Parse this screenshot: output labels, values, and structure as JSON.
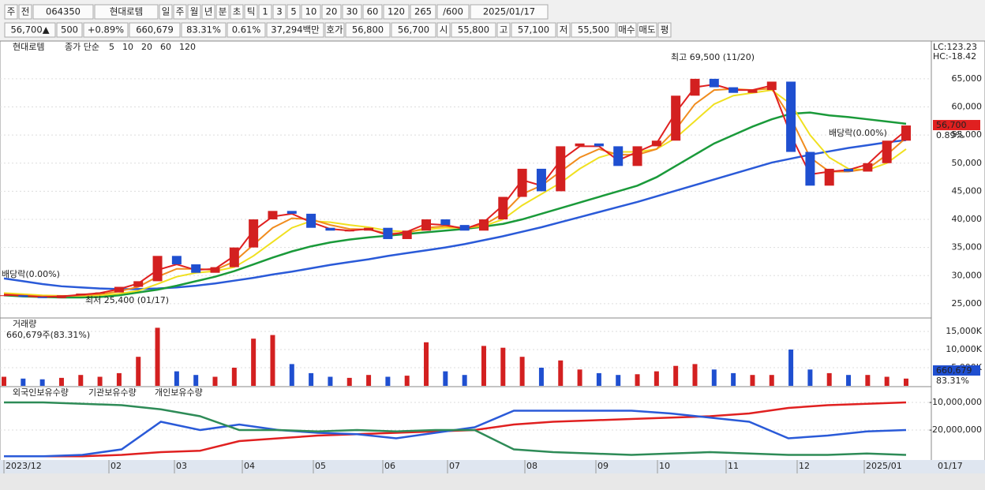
{
  "toolbar": {
    "row1": [
      "주",
      "전",
      "064350",
      "현대로템",
      "일",
      "주",
      "월",
      "년",
      "분",
      "초",
      "틱",
      "1",
      "3",
      "5",
      "10",
      "20",
      "30",
      "60",
      "120",
      "265",
      "/600",
      "2025/01/17"
    ],
    "row2": [
      "56,700▲",
      "500",
      "+0.89%",
      "660,679",
      "83.31%",
      "0.61%",
      "37,294백만",
      "호가",
      "56,800",
      "56,700",
      "시",
      "55,800",
      "고",
      "57,100",
      "저",
      "55,500",
      "매수",
      "매도",
      "평"
    ]
  },
  "chart_data": [
    {
      "type": "candlestick",
      "name": "현대로템",
      "ma_label": "종가 단순",
      "ylim": [
        22600,
        71300
      ],
      "yticks": [
        {
          "value": 25000,
          "label": "25,000"
        },
        {
          "value": 30000,
          "label": "30,000"
        },
        {
          "value": 35000,
          "label": "35,000"
        },
        {
          "value": 40000,
          "label": "40,000"
        },
        {
          "value": 45000,
          "label": "45,000"
        },
        {
          "value": 50000,
          "label": "50,000"
        },
        {
          "value": 55000,
          "label": "55,000"
        },
        {
          "value": 60000,
          "label": "60,000"
        },
        {
          "value": 65000,
          "label": "65,000"
        }
      ],
      "values": [
        26500,
        26200,
        26000,
        26500,
        26800,
        27000,
        28000,
        29000,
        33500,
        32000,
        30500,
        31500,
        35000,
        40000,
        41500,
        41000,
        38500,
        38000,
        38000,
        38500,
        36500,
        38000,
        40000,
        39000,
        38000,
        40000,
        44000,
        49000,
        45000,
        53000,
        53500,
        53000,
        49500,
        53000,
        54000,
        62000,
        65000,
        63500,
        62500,
        63000,
        64500,
        52000,
        46000,
        49000,
        48500,
        50000,
        54000,
        56700
      ],
      "up_color": "#d32020",
      "down_color": "#1f4fd0",
      "series": [
        {
          "name": "5",
          "color": "#e02020",
          "values": [
            26600,
            26400,
            26200,
            26300,
            26600,
            26900,
            27600,
            28600,
            31000,
            32000,
            31000,
            31200,
            33500,
            38000,
            40500,
            41000,
            39500,
            38300,
            38000,
            38300,
            37200,
            37800,
            39200,
            39000,
            38300,
            39500,
            42500,
            47000,
            46000,
            50500,
            53000,
            53000,
            50500,
            52000,
            53500,
            59000,
            63500,
            64000,
            63000,
            63000,
            63800,
            55000,
            48000,
            48500,
            48800,
            49800,
            53000,
            55800
          ]
        },
        {
          "name": "10",
          "color": "#f08c1e",
          "values": [
            26700,
            26500,
            26300,
            26300,
            26500,
            26700,
            27200,
            28000,
            29800,
            31200,
            31200,
            31000,
            32500,
            35500,
            38500,
            40200,
            40000,
            39000,
            38300,
            38200,
            37500,
            37600,
            38500,
            38800,
            38500,
            39000,
            41000,
            44500,
            46000,
            48500,
            51000,
            52500,
            51500,
            51500,
            52500,
            56000,
            60500,
            63000,
            63200,
            63000,
            63300,
            58000,
            51000,
            48500,
            48500,
            49000,
            51500,
            54500
          ]
        },
        {
          "name": "20",
          "color": "#f0e020",
          "values": [
            26900,
            26700,
            26500,
            26400,
            26400,
            26500,
            26800,
            27300,
            28500,
            29800,
            30500,
            30800,
            31500,
            33500,
            36000,
            38500,
            39700,
            39500,
            39000,
            38600,
            38000,
            37800,
            38200,
            38500,
            38500,
            38800,
            40000,
            42500,
            44500,
            46500,
            49000,
            51000,
            52000,
            52000,
            52500,
            54500,
            57500,
            60500,
            62000,
            62500,
            63000,
            60500,
            55000,
            51000,
            49000,
            48800,
            50000,
            52500
          ]
        },
        {
          "name": "60",
          "color": "#1a9a3a",
          "values": [
            26500,
            26300,
            26200,
            26100,
            26100,
            26200,
            26500,
            27000,
            27500,
            28200,
            29000,
            29800,
            30800,
            32000,
            33200,
            34300,
            35200,
            35900,
            36400,
            36800,
            37100,
            37400,
            37700,
            38000,
            38300,
            38700,
            39200,
            40000,
            41000,
            42000,
            43000,
            44000,
            45000,
            46000,
            47500,
            49500,
            51500,
            53500,
            55000,
            56500,
            57800,
            58800,
            59000,
            58500,
            58200,
            57800,
            57400,
            57000
          ]
        },
        {
          "name": "120",
          "color": "#2a5ad8",
          "values": [
            29500,
            29000,
            28500,
            28100,
            27900,
            27700,
            27600,
            27600,
            27700,
            27900,
            28200,
            28600,
            29100,
            29600,
            30200,
            30700,
            31300,
            31900,
            32400,
            32900,
            33500,
            34000,
            34500,
            35000,
            35600,
            36300,
            37000,
            37800,
            38600,
            39500,
            40400,
            41300,
            42200,
            43100,
            44100,
            45100,
            46100,
            47100,
            48100,
            49100,
            50100,
            50800,
            51500,
            52100,
            52700,
            53200,
            53700,
            54100
          ]
        }
      ],
      "annotations": [
        "최고 69,500 (11/20)",
        "최저 25,400 (01/17)",
        "배당락(0.00%)",
        "배당락(0.00%)"
      ],
      "right_labels": [
        "LC:123.23",
        "HC:-18.42"
      ],
      "last_label": "56,700",
      "change_label": "0.89%"
    },
    {
      "type": "bar",
      "title": "거래량",
      "subtitle": "660,679주(83.31%)",
      "ylim": [
        0,
        18260
      ],
      "yticks": [
        {
          "value": 5000,
          "label": "5,000K"
        },
        {
          "value": 10000,
          "label": "10,000K"
        },
        {
          "value": 15000,
          "label": "15,000K"
        }
      ],
      "values": [
        2500,
        2000,
        1800,
        2200,
        3000,
        2500,
        3500,
        8000,
        16000,
        4000,
        3000,
        2500,
        5000,
        13000,
        14000,
        6000,
        3500,
        2500,
        2200,
        3000,
        2500,
        2800,
        12000,
        4000,
        3000,
        11000,
        10500,
        8000,
        5000,
        7000,
        4500,
        3500,
        3000,
        3200,
        4000,
        5500,
        6000,
        4500,
        3500,
        3000,
        3000,
        10000,
        4500,
        3500,
        3000,
        3000,
        2500,
        2000
      ],
      "last_label": "660,679",
      "ratio_label": "83.31%"
    },
    {
      "type": "line",
      "ylim": [
        -30570000,
        -4860000
      ],
      "yticks": [
        {
          "value": -10000000,
          "label": "-10,000,000"
        },
        {
          "value": -20000000,
          "label": "-20,000,000"
        }
      ],
      "series": [
        {
          "name": "외국인보유수량",
          "color": "#e02020",
          "values": [
            -29500000,
            -29500000,
            -29500000,
            -29000000,
            -28000000,
            -27500000,
            -24000000,
            -23000000,
            -22000000,
            -21500000,
            -21000000,
            -20500000,
            -20000000,
            -18000000,
            -17000000,
            -16500000,
            -16000000,
            -15500000,
            -15000000,
            -14000000,
            -12000000,
            -11000000,
            -10500000,
            -10000000
          ]
        },
        {
          "name": "기관보유수량",
          "color": "#2a5ad8",
          "values": [
            -29500000,
            -29500000,
            -29000000,
            -27000000,
            -17000000,
            -20000000,
            -18000000,
            -20000000,
            -21000000,
            -21500000,
            -23000000,
            -21000000,
            -19000000,
            -13000000,
            -13000000,
            -13000000,
            -13000000,
            -14000000,
            -15500000,
            -17000000,
            -23000000,
            -22000000,
            -20500000,
            -20000000
          ]
        },
        {
          "name": "개인보유수량",
          "color": "#2e8b57",
          "values": [
            -10000000,
            -10000000,
            -10500000,
            -11000000,
            -12500000,
            -15000000,
            -20000000,
            -20000000,
            -20500000,
            -20000000,
            -20500000,
            -20000000,
            -20000000,
            -27000000,
            -28000000,
            -28500000,
            -29000000,
            -28500000,
            -28000000,
            -28500000,
            -29000000,
            -29000000,
            -28500000,
            -29000000
          ]
        }
      ],
      "xticks": [
        "2023/12",
        "02",
        "03",
        "04",
        "05",
        "06",
        "07",
        "08",
        "09",
        "10",
        "11",
        "12",
        "2025/01"
      ],
      "last_date": "01/17"
    }
  ]
}
